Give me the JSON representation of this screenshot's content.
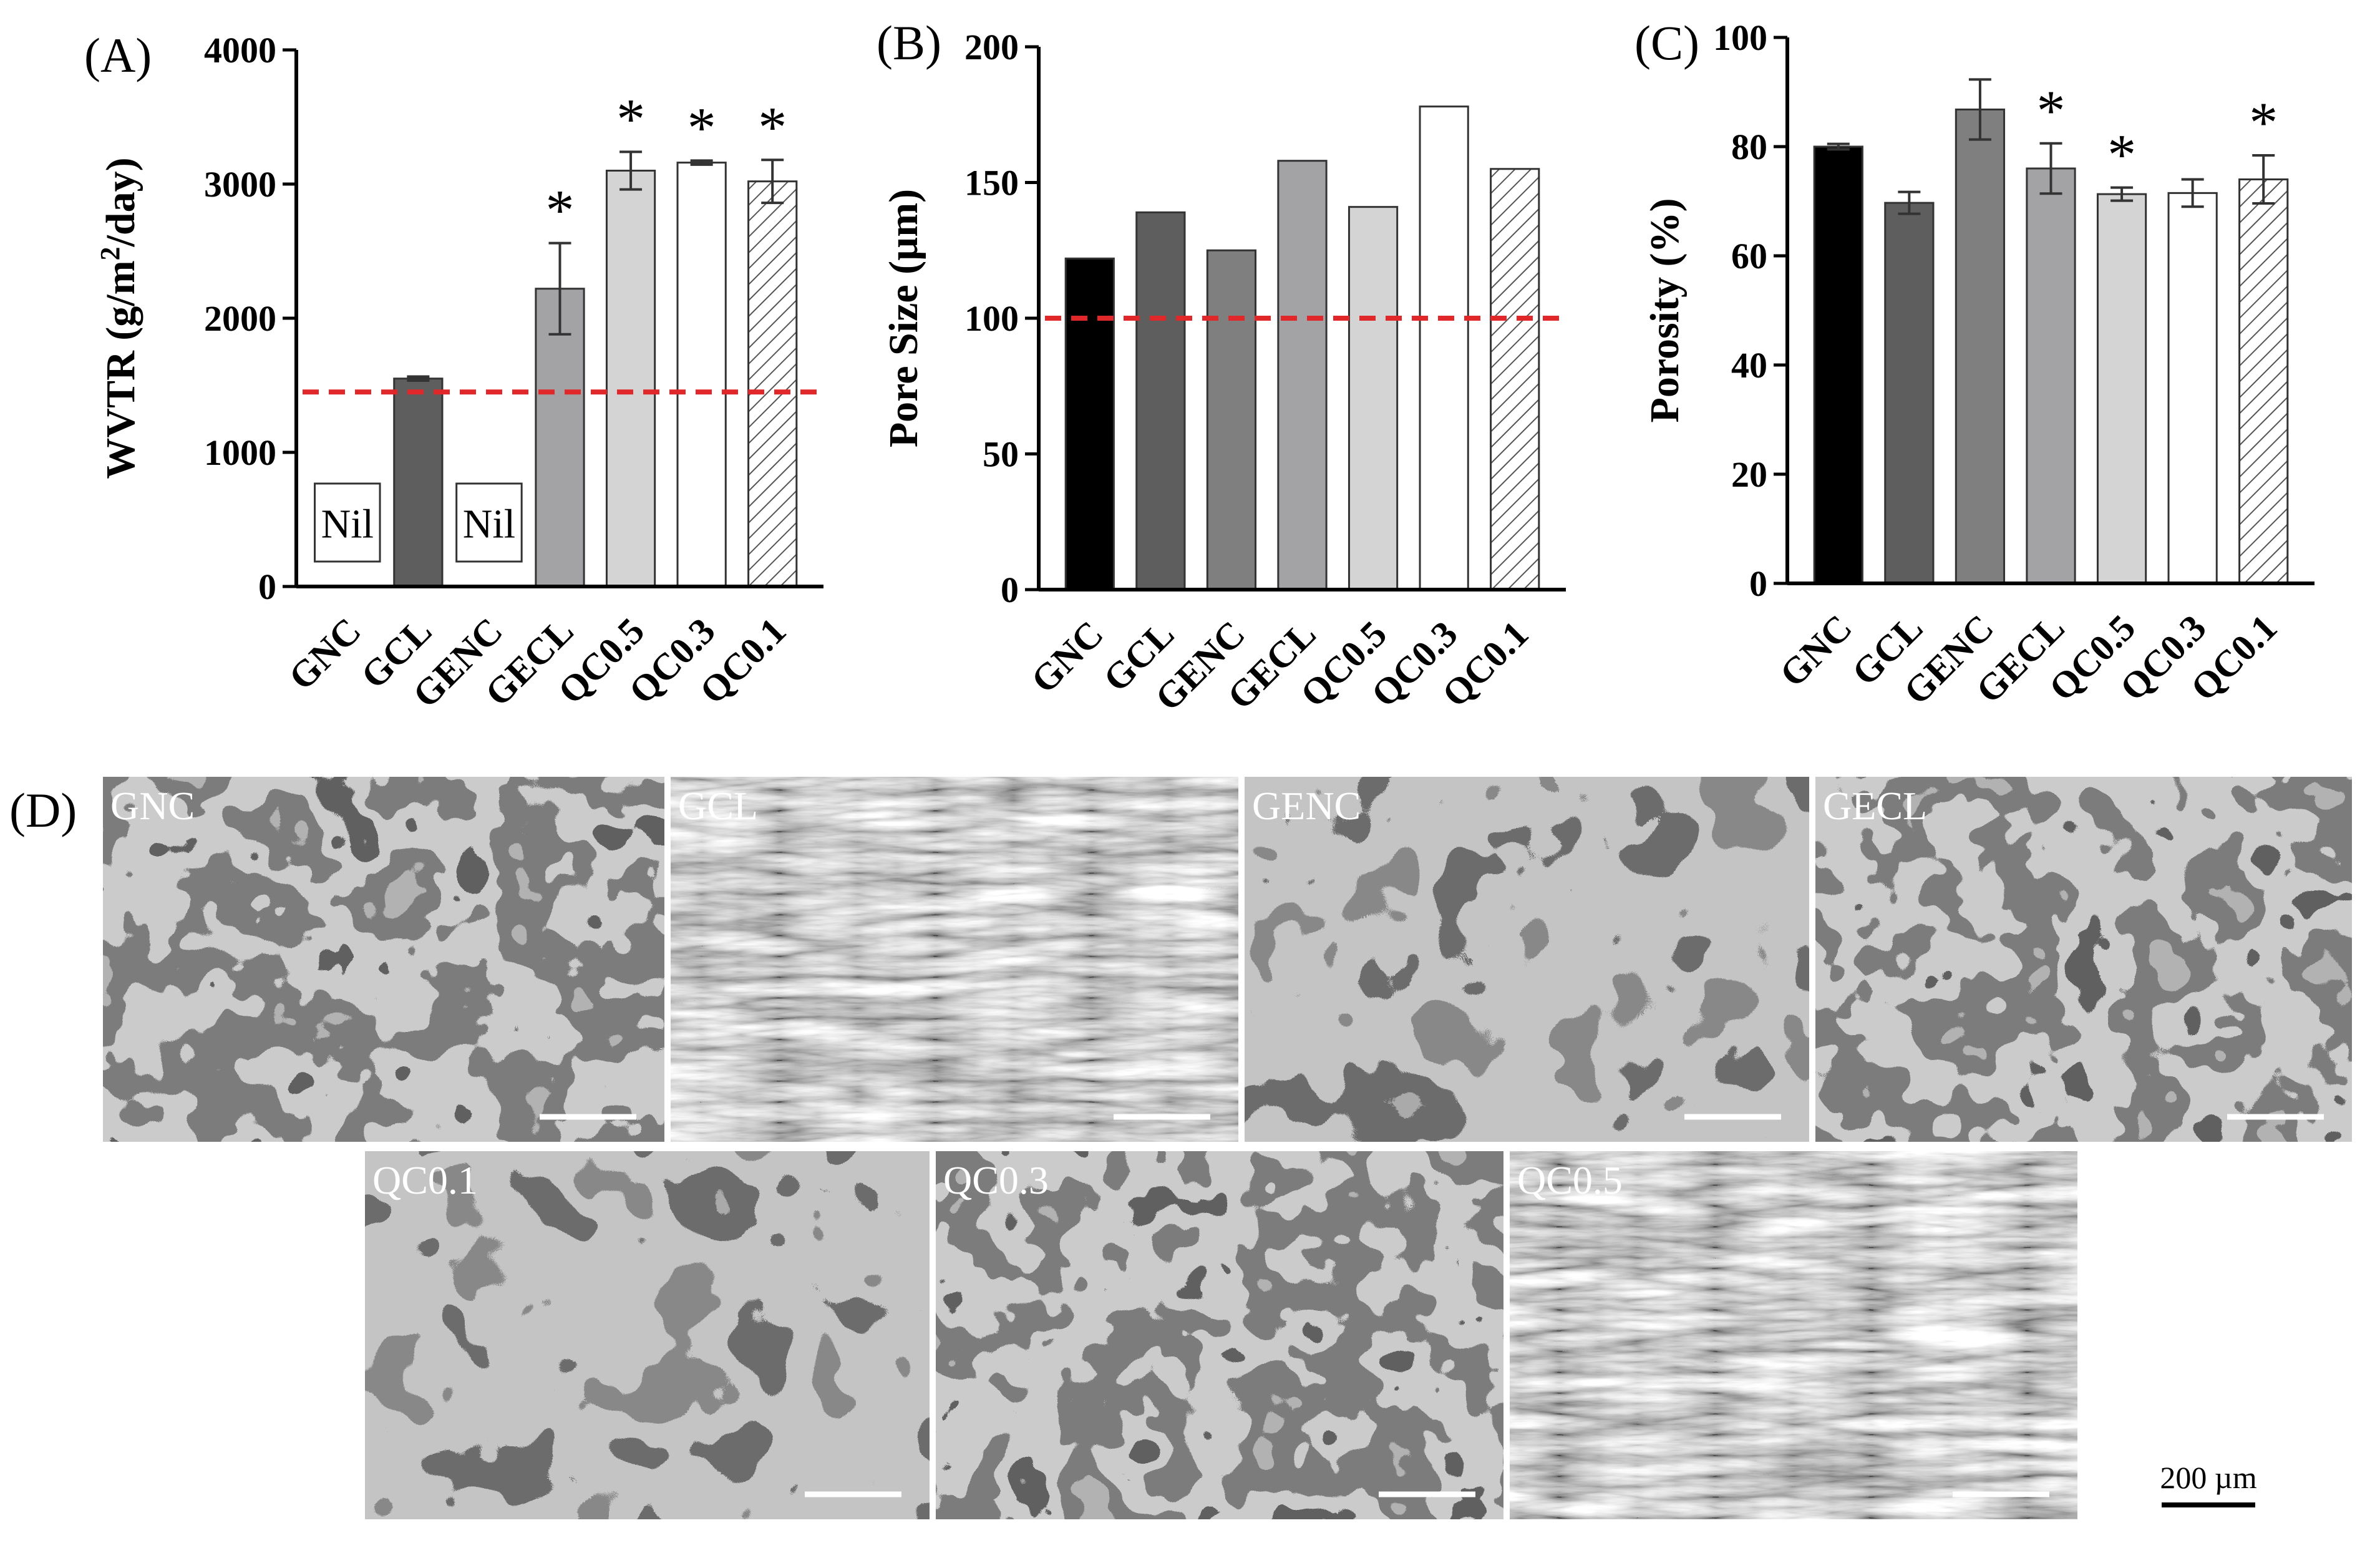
{
  "chart_data": [
    {
      "panel": "(A)",
      "type": "bar",
      "ylabel": "WVTR (g/m²/day)",
      "ylabel_main": "WVTR (g/m",
      "ylabel_sup": "2",
      "ylabel_tail": "/day)",
      "ylim": [
        0,
        4000
      ],
      "yticks": [
        "0",
        "1000",
        "2000",
        "3000",
        "4000"
      ],
      "categories": [
        "GNC",
        "GCL",
        "GENC",
        "GECL",
        "QC0.5",
        "QC0.3",
        "QC0.1"
      ],
      "values": [
        null,
        1550,
        null,
        2220,
        3100,
        3160,
        3020
      ],
      "errors": [
        null,
        15,
        null,
        340,
        140,
        15,
        160
      ],
      "significance": [
        "",
        "",
        "",
        "*",
        "*",
        "*",
        "*"
      ],
      "bar_labels": [
        "Nil",
        "",
        "Nil",
        "",
        "",
        "",
        ""
      ],
      "reference_line": 1450,
      "colors": [
        "#000000",
        "#5e5e5e",
        "#7f7f7f",
        "#a3a3a6",
        "#d4d4d4",
        "#ffffff",
        "hatch"
      ],
      "reference_color": "#e0282a",
      "grid": false
    },
    {
      "panel": "(B)",
      "type": "bar",
      "ylabel": "Pore Size (µm)",
      "ylim": [
        0,
        200
      ],
      "yticks": [
        "0",
        "50",
        "100",
        "150",
        "200"
      ],
      "categories": [
        "GNC",
        "GCL",
        "GENC",
        "GECL",
        "QC0.5",
        "QC0.3",
        "QC0.1"
      ],
      "values": [
        122,
        139,
        125,
        158,
        141,
        178,
        155
      ],
      "errors": [
        null,
        null,
        null,
        null,
        null,
        null,
        null
      ],
      "significance": [
        "",
        "",
        "",
        "",
        "",
        "",
        ""
      ],
      "bar_labels": [
        "",
        "",
        "",
        "",
        "",
        "",
        ""
      ],
      "reference_line": 100,
      "colors": [
        "#000000",
        "#5e5e5e",
        "#7f7f7f",
        "#a3a3a6",
        "#d4d4d4",
        "#ffffff",
        "hatch"
      ],
      "reference_color": "#e0282a",
      "grid": false
    },
    {
      "panel": "(C)",
      "type": "bar",
      "ylabel": "Porosity (%)",
      "ylim": [
        0,
        100
      ],
      "yticks": [
        "0",
        "20",
        "40",
        "60",
        "80",
        "100"
      ],
      "categories": [
        "GNC",
        "GCL",
        "GENC",
        "GECL",
        "QC0.5",
        "QC0.3",
        "QC0.1"
      ],
      "values": [
        80,
        69.7,
        86.8,
        76,
        71.3,
        71.5,
        74
      ],
      "errors": [
        0.5,
        2,
        5.5,
        4.6,
        1.2,
        2.5,
        4.4
      ],
      "significance": [
        "",
        "",
        "",
        "*",
        "*",
        "",
        "*"
      ],
      "bar_labels": [
        "",
        "",
        "",
        "",
        "",
        "",
        ""
      ],
      "reference_line": null,
      "colors": [
        "#000000",
        "#5e5e5e",
        "#7f7f7f",
        "#a3a3a6",
        "#d4d4d4",
        "#ffffff",
        "hatch"
      ],
      "grid": false
    }
  ],
  "sem_panel": {
    "label": "(D)",
    "images": [
      "GNC",
      "GCL",
      "GENC",
      "GECL",
      "QC0.1",
      "QC0.3",
      "QC0.5"
    ],
    "scale_bar_text": "200 µm"
  }
}
